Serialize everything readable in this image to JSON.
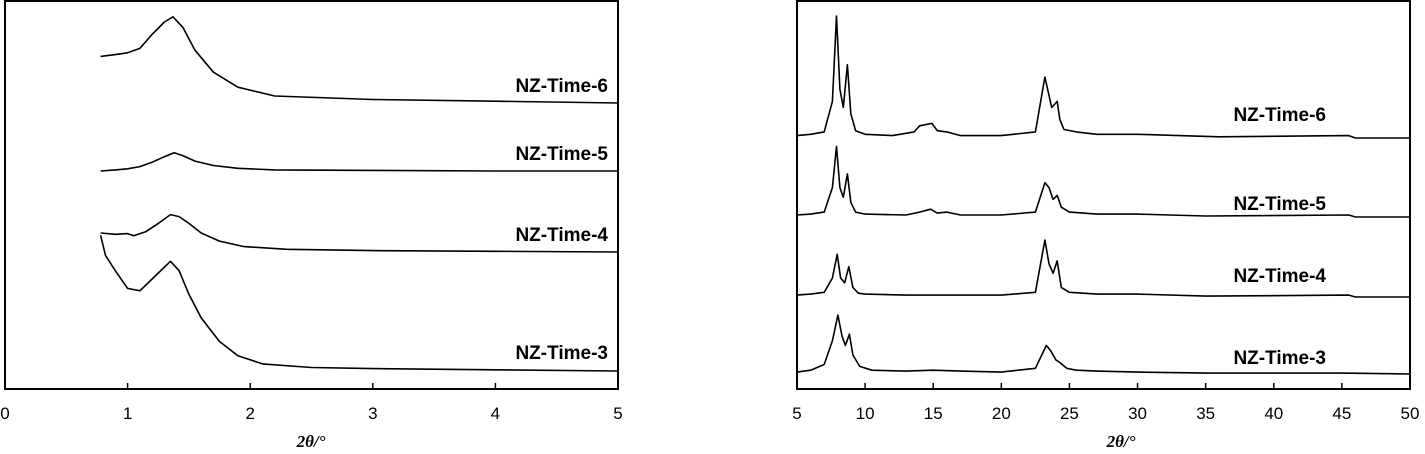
{
  "chart_data": [
    {
      "type": "line",
      "xlabel": "2θ/°",
      "ylabel": "",
      "xlim": [
        0,
        5
      ],
      "xticks": [
        0,
        1,
        2,
        3,
        4,
        5
      ],
      "x_tick_labels": [
        "0",
        "1",
        "2",
        "3",
        "4",
        "5"
      ],
      "grid": false,
      "series": [
        {
          "name": "NZ-Time-6",
          "x": [
            0.78,
            0.9,
            1.0,
            1.1,
            1.2,
            1.3,
            1.37,
            1.45,
            1.55,
            1.7,
            1.9,
            2.2,
            3,
            4,
            5
          ],
          "y": [
            0.53,
            0.55,
            0.57,
            0.62,
            0.78,
            0.92,
            0.98,
            0.86,
            0.6,
            0.35,
            0.18,
            0.08,
            0.04,
            0.02,
            0.0
          ]
        },
        {
          "name": "NZ-Time-5",
          "x": [
            0.78,
            0.9,
            1.0,
            1.1,
            1.2,
            1.3,
            1.38,
            1.45,
            1.55,
            1.7,
            1.9,
            2.2,
            3,
            4,
            5
          ],
          "y": [
            0.0,
            0.02,
            0.04,
            0.08,
            0.16,
            0.26,
            0.33,
            0.28,
            0.18,
            0.1,
            0.05,
            0.02,
            0.01,
            0.0,
            0.0
          ]
        },
        {
          "name": "NZ-Time-4",
          "x": [
            0.78,
            0.9,
            1.0,
            1.05,
            1.15,
            1.25,
            1.35,
            1.42,
            1.5,
            1.6,
            1.75,
            1.95,
            2.3,
            3,
            4,
            5
          ],
          "y": [
            0.28,
            0.26,
            0.27,
            0.24,
            0.3,
            0.42,
            0.55,
            0.52,
            0.42,
            0.28,
            0.16,
            0.08,
            0.04,
            0.02,
            0.01,
            0.0
          ]
        },
        {
          "name": "NZ-Time-3",
          "x": [
            0.78,
            0.82,
            0.9,
            1.0,
            1.1,
            1.2,
            1.35,
            1.42,
            1.5,
            1.6,
            1.75,
            1.9,
            2.1,
            2.5,
            3,
            4,
            5
          ],
          "y": [
            1.15,
            0.98,
            0.85,
            0.7,
            0.68,
            0.78,
            0.93,
            0.85,
            0.65,
            0.45,
            0.25,
            0.13,
            0.06,
            0.03,
            0.02,
            0.01,
            0.0
          ]
        }
      ]
    },
    {
      "type": "line",
      "xlabel": "2θ/°",
      "ylabel": "",
      "xlim": [
        5,
        50
      ],
      "xticks": [
        5,
        10,
        15,
        20,
        25,
        30,
        35,
        40,
        45,
        50
      ],
      "x_tick_labels": [
        "5",
        "10",
        "15",
        "20",
        "25",
        "30",
        "35",
        "40",
        "45",
        "50"
      ],
      "grid": false,
      "series": [
        {
          "name": "NZ-Time-6",
          "x": [
            5,
            6,
            7,
            7.6,
            7.9,
            8.15,
            8.4,
            8.7,
            8.95,
            9.3,
            10,
            12,
            13.6,
            14,
            14.9,
            15.3,
            16,
            17,
            20,
            22.5,
            23.2,
            23.4,
            23.7,
            24.1,
            24.3,
            24.6,
            25.5,
            27,
            30,
            36,
            45.5,
            46,
            50
          ],
          "y": [
            0.02,
            0.03,
            0.05,
            0.3,
            1.0,
            0.4,
            0.25,
            0.6,
            0.2,
            0.06,
            0.03,
            0.02,
            0.05,
            0.1,
            0.12,
            0.06,
            0.05,
            0.02,
            0.02,
            0.05,
            0.5,
            0.4,
            0.25,
            0.3,
            0.15,
            0.07,
            0.05,
            0.03,
            0.03,
            0.01,
            0.02,
            0.0,
            0.0
          ]
        },
        {
          "name": "NZ-Time-5",
          "x": [
            5,
            6,
            7,
            7.6,
            7.9,
            8.15,
            8.4,
            8.7,
            8.95,
            9.3,
            10,
            13,
            14,
            14.8,
            15.3,
            16,
            17,
            20,
            22.5,
            23.2,
            23.5,
            23.8,
            24.1,
            24.4,
            25,
            27,
            30,
            35,
            45.5,
            46,
            50
          ],
          "y": [
            0.02,
            0.03,
            0.05,
            0.3,
            0.72,
            0.3,
            0.2,
            0.44,
            0.15,
            0.05,
            0.03,
            0.02,
            0.05,
            0.08,
            0.04,
            0.05,
            0.02,
            0.02,
            0.05,
            0.35,
            0.3,
            0.18,
            0.22,
            0.1,
            0.05,
            0.03,
            0.03,
            0.01,
            0.02,
            0.0,
            0.0
          ]
        },
        {
          "name": "NZ-Time-4",
          "x": [
            5,
            6,
            7,
            7.6,
            7.95,
            8.2,
            8.5,
            8.8,
            9.1,
            9.5,
            10,
            13,
            15,
            17,
            20,
            22.5,
            23.2,
            23.5,
            23.8,
            24.1,
            24.4,
            25,
            27,
            30,
            35,
            45.5,
            46,
            50
          ],
          "y": [
            0.02,
            0.03,
            0.05,
            0.2,
            0.45,
            0.2,
            0.15,
            0.32,
            0.1,
            0.04,
            0.03,
            0.02,
            0.02,
            0.02,
            0.02,
            0.05,
            0.6,
            0.35,
            0.25,
            0.38,
            0.1,
            0.05,
            0.03,
            0.03,
            0.01,
            0.02,
            0.0,
            0.0
          ]
        },
        {
          "name": "NZ-Time-3",
          "x": [
            5,
            6,
            7,
            7.6,
            8.0,
            8.3,
            8.55,
            8.85,
            9.1,
            9.6,
            10.5,
            13,
            15,
            17,
            20,
            22.5,
            23.3,
            23.6,
            24,
            24.3,
            24.8,
            25.5,
            27,
            30,
            35,
            45,
            50
          ],
          "y": [
            0.02,
            0.04,
            0.1,
            0.35,
            0.62,
            0.4,
            0.3,
            0.42,
            0.2,
            0.08,
            0.04,
            0.03,
            0.04,
            0.03,
            0.02,
            0.06,
            0.3,
            0.25,
            0.15,
            0.12,
            0.06,
            0.04,
            0.03,
            0.02,
            0.01,
            0.01,
            0.0
          ]
        }
      ]
    }
  ]
}
